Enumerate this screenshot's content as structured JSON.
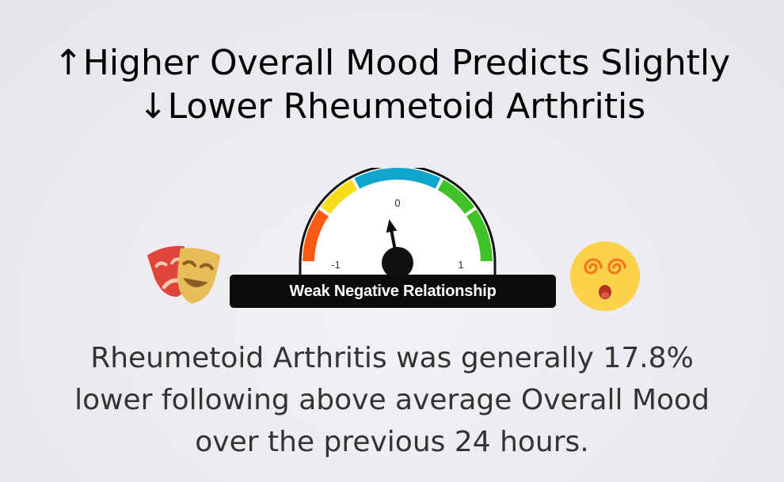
{
  "title": {
    "line1": "↑Higher Overall Mood Predicts Slightly",
    "line2": "↓Lower Rheumetoid Arthritis"
  },
  "gauge": {
    "tick_min": "-1",
    "tick_mid": "0",
    "tick_max": "1",
    "value": -0.12,
    "segment_colors": [
      "#fb5a12",
      "#f9dc1a",
      "#10a6cc",
      "#3fc225",
      "#3fc225"
    ],
    "label": "Weak Negative Relationship"
  },
  "icons": {
    "left": "theater-masks-icon",
    "right": "dizzy-face-icon"
  },
  "description": {
    "line1": "Rheumetoid Arthritis was generally 17.8%",
    "line2": "lower following above average Overall Mood",
    "line3": "over the previous 24 hours."
  }
}
